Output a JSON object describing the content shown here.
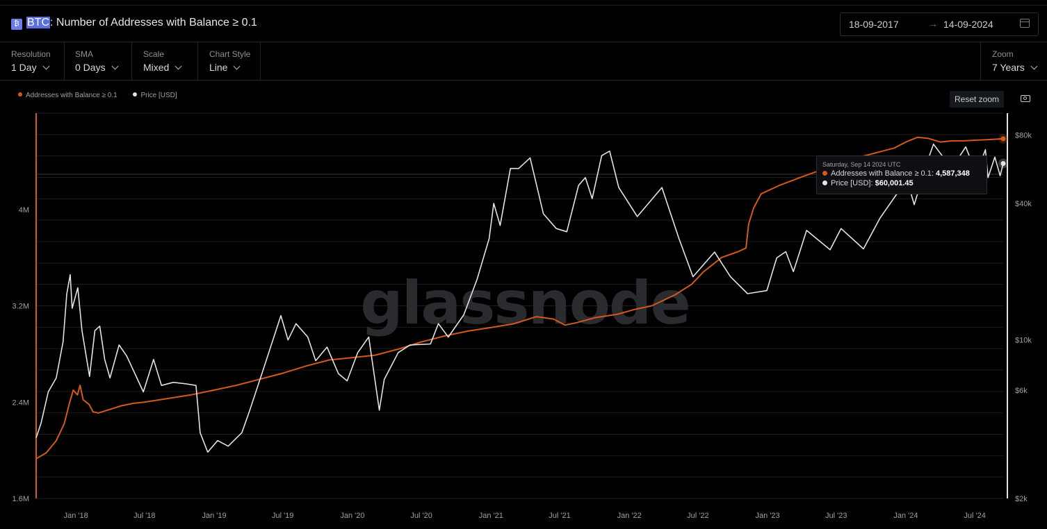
{
  "header": {
    "asset": "BTC",
    "title": ": Number of Addresses with Balance ≥ 0.1",
    "icon": "bitcoin-icon",
    "date_from": "18-09-2017",
    "date_arrow": "→",
    "date_to": "14-09-2024"
  },
  "controls": {
    "resolution": {
      "label": "Resolution",
      "value": "1 Day"
    },
    "sma": {
      "label": "SMA",
      "value": "0 Days"
    },
    "scale": {
      "label": "Scale",
      "value": "Mixed"
    },
    "chart_style": {
      "label": "Chart Style",
      "value": "Line"
    },
    "zoom": {
      "label": "Zoom",
      "value": "7 Years"
    }
  },
  "toolbar": {
    "reset_zoom": "Reset zoom",
    "screenshot_icon": "camera-icon"
  },
  "watermark": "glassnode",
  "tooltip": {
    "date": "Saturday, Sep 14 2024 UTC",
    "row1_label": "Addresses with Balance ≥ 0.1: ",
    "row1_value": "4,587,348",
    "row2_label": "Price [USD]: ",
    "row2_value": "$60,001.45"
  },
  "colors": {
    "addresses": "#d35a1b",
    "price": "#e4e4e4",
    "background": "#000000",
    "grid": "#1b1d21"
  },
  "chart_data": {
    "type": "line",
    "title": "BTC: Number of Addresses with Balance ≥ 0.1",
    "legend": [
      "Addresses with Balance ≥ 0.1",
      "Price [USD]"
    ],
    "legend_position": "top-left",
    "x_range": [
      "2017-09-18",
      "2024-09-14"
    ],
    "x_ticks": [
      "Jan '18",
      "Jul '18",
      "Jan '19",
      "Jul '19",
      "Jan '20",
      "Jul '20",
      "Jan '21",
      "Jul '21",
      "Jan '22",
      "Jul '22",
      "Jan '23",
      "Jul '23",
      "Jan '24",
      "Jul '24"
    ],
    "y_left": {
      "label": "",
      "scale": "linear",
      "range": [
        1600000,
        4800000
      ],
      "ticks": [
        1600000,
        2400000,
        3200000,
        4000000
      ],
      "tick_labels": [
        "1.6M",
        "2.4M",
        "3.2M",
        "4M"
      ]
    },
    "y_right": {
      "label": "",
      "scale": "log",
      "range": [
        2000,
        100000
      ],
      "ticks": [
        2000,
        6000,
        10000,
        40000,
        80000
      ],
      "tick_labels": [
        "$2k",
        "$6k",
        "$10k",
        "$40k",
        "$80k"
      ]
    },
    "grid": true,
    "series": [
      {
        "name": "Addresses with Balance ≥ 0.1",
        "axis": "left",
        "color": "#d35a1b",
        "points": [
          [
            "2017-09-18",
            1930000
          ],
          [
            "2017-10-15",
            1980000
          ],
          [
            "2017-11-10",
            2080000
          ],
          [
            "2017-12-01",
            2220000
          ],
          [
            "2017-12-15",
            2390000
          ],
          [
            "2017-12-25",
            2500000
          ],
          [
            "2018-01-05",
            2460000
          ],
          [
            "2018-01-12",
            2540000
          ],
          [
            "2018-01-20",
            2420000
          ],
          [
            "2018-02-05",
            2380000
          ],
          [
            "2018-02-15",
            2320000
          ],
          [
            "2018-03-01",
            2310000
          ],
          [
            "2018-04-01",
            2340000
          ],
          [
            "2018-05-01",
            2370000
          ],
          [
            "2018-06-01",
            2390000
          ],
          [
            "2018-07-01",
            2400000
          ],
          [
            "2018-09-01",
            2430000
          ],
          [
            "2018-11-01",
            2460000
          ],
          [
            "2018-12-01",
            2480000
          ],
          [
            "2019-01-01",
            2500000
          ],
          [
            "2019-03-01",
            2540000
          ],
          [
            "2019-05-01",
            2590000
          ],
          [
            "2019-07-01",
            2640000
          ],
          [
            "2019-09-01",
            2700000
          ],
          [
            "2019-11-01",
            2750000
          ],
          [
            "2020-01-01",
            2770000
          ],
          [
            "2020-03-01",
            2790000
          ],
          [
            "2020-05-01",
            2840000
          ],
          [
            "2020-07-01",
            2900000
          ],
          [
            "2020-09-01",
            2950000
          ],
          [
            "2020-11-01",
            2990000
          ],
          [
            "2021-01-01",
            3020000
          ],
          [
            "2021-03-01",
            3050000
          ],
          [
            "2021-05-01",
            3110000
          ],
          [
            "2021-06-15",
            3090000
          ],
          [
            "2021-07-15",
            3040000
          ],
          [
            "2021-08-15",
            3060000
          ],
          [
            "2021-10-01",
            3100000
          ],
          [
            "2021-12-01",
            3130000
          ],
          [
            "2022-01-15",
            3170000
          ],
          [
            "2022-03-01",
            3200000
          ],
          [
            "2022-05-01",
            3290000
          ],
          [
            "2022-06-15",
            3380000
          ],
          [
            "2022-07-15",
            3480000
          ],
          [
            "2022-09-01",
            3600000
          ],
          [
            "2022-10-15",
            3650000
          ],
          [
            "2022-11-05",
            3680000
          ],
          [
            "2022-11-12",
            3880000
          ],
          [
            "2022-11-25",
            4010000
          ],
          [
            "2022-12-15",
            4130000
          ],
          [
            "2023-02-01",
            4200000
          ],
          [
            "2023-04-01",
            4270000
          ],
          [
            "2023-06-01",
            4340000
          ],
          [
            "2023-08-01",
            4410000
          ],
          [
            "2023-10-01",
            4460000
          ],
          [
            "2023-12-01",
            4510000
          ],
          [
            "2024-01-01",
            4560000
          ],
          [
            "2024-02-01",
            4600000
          ],
          [
            "2024-03-01",
            4590000
          ],
          [
            "2024-04-01",
            4560000
          ],
          [
            "2024-05-01",
            4570000
          ],
          [
            "2024-06-01",
            4570000
          ],
          [
            "2024-07-01",
            4575000
          ],
          [
            "2024-08-01",
            4580000
          ],
          [
            "2024-09-14",
            4587348
          ]
        ]
      },
      {
        "name": "Price [USD]",
        "axis": "right",
        "color": "#e4e4e4",
        "points": [
          [
            "2017-09-18",
            3700
          ],
          [
            "2017-10-01",
            4300
          ],
          [
            "2017-10-20",
            5900
          ],
          [
            "2017-11-10",
            6800
          ],
          [
            "2017-11-28",
            9800
          ],
          [
            "2017-12-08",
            16000
          ],
          [
            "2017-12-17",
            19400
          ],
          [
            "2017-12-22",
            13800
          ],
          [
            "2018-01-06",
            17000
          ],
          [
            "2018-01-17",
            11000
          ],
          [
            "2018-02-06",
            6900
          ],
          [
            "2018-02-20",
            11000
          ],
          [
            "2018-03-05",
            11500
          ],
          [
            "2018-03-18",
            8200
          ],
          [
            "2018-04-01",
            6800
          ],
          [
            "2018-04-25",
            9500
          ],
          [
            "2018-05-15",
            8500
          ],
          [
            "2018-06-28",
            5900
          ],
          [
            "2018-07-25",
            8200
          ],
          [
            "2018-08-15",
            6300
          ],
          [
            "2018-09-15",
            6500
          ],
          [
            "2018-10-20",
            6400
          ],
          [
            "2018-11-14",
            6300
          ],
          [
            "2018-11-25",
            3900
          ],
          [
            "2018-12-15",
            3200
          ],
          [
            "2019-01-10",
            3600
          ],
          [
            "2019-02-07",
            3400
          ],
          [
            "2019-03-15",
            3900
          ],
          [
            "2019-04-05",
            4900
          ],
          [
            "2019-05-15",
            7800
          ],
          [
            "2019-06-26",
            12800
          ],
          [
            "2019-07-15",
            10000
          ],
          [
            "2019-08-05",
            11800
          ],
          [
            "2019-09-05",
            10300
          ],
          [
            "2019-09-26",
            8100
          ],
          [
            "2019-10-26",
            9300
          ],
          [
            "2019-11-25",
            7100
          ],
          [
            "2019-12-18",
            6600
          ],
          [
            "2020-01-15",
            8800
          ],
          [
            "2020-02-13",
            10300
          ],
          [
            "2020-03-12",
            4900
          ],
          [
            "2020-03-25",
            6700
          ],
          [
            "2020-05-01",
            8800
          ],
          [
            "2020-06-01",
            9500
          ],
          [
            "2020-07-25",
            9600
          ],
          [
            "2020-08-15",
            11800
          ],
          [
            "2020-09-10",
            10300
          ],
          [
            "2020-10-21",
            12900
          ],
          [
            "2020-11-25",
            18500
          ],
          [
            "2020-12-27",
            28000
          ],
          [
            "2021-01-08",
            40000
          ],
          [
            "2021-01-25",
            32000
          ],
          [
            "2021-02-21",
            57000
          ],
          [
            "2021-03-15",
            57000
          ],
          [
            "2021-04-14",
            63500
          ],
          [
            "2021-05-19",
            36000
          ],
          [
            "2021-06-22",
            31000
          ],
          [
            "2021-07-20",
            30000
          ],
          [
            "2021-08-20",
            48000
          ],
          [
            "2021-09-07",
            52000
          ],
          [
            "2021-09-25",
            42000
          ],
          [
            "2021-10-20",
            65000
          ],
          [
            "2021-11-10",
            68000
          ],
          [
            "2021-12-04",
            47000
          ],
          [
            "2022-01-22",
            35000
          ],
          [
            "2022-03-28",
            47000
          ],
          [
            "2022-05-12",
            28000
          ],
          [
            "2022-06-18",
            19000
          ],
          [
            "2022-08-14",
            24400
          ],
          [
            "2022-09-25",
            19000
          ],
          [
            "2022-11-09",
            16000
          ],
          [
            "2022-12-30",
            16500
          ],
          [
            "2023-01-25",
            23000
          ],
          [
            "2023-02-18",
            24500
          ],
          [
            "2023-03-10",
            20000
          ],
          [
            "2023-04-14",
            30400
          ],
          [
            "2023-06-15",
            25000
          ],
          [
            "2023-07-14",
            31000
          ],
          [
            "2023-09-11",
            25200
          ],
          [
            "2023-10-25",
            34500
          ],
          [
            "2023-12-08",
            44000
          ],
          [
            "2024-01-11",
            46500
          ],
          [
            "2024-01-23",
            39500
          ],
          [
            "2024-02-28",
            62000
          ],
          [
            "2024-03-14",
            73000
          ],
          [
            "2024-05-01",
            57000
          ],
          [
            "2024-06-07",
            71000
          ],
          [
            "2024-07-05",
            54000
          ],
          [
            "2024-07-29",
            69000
          ],
          [
            "2024-08-05",
            52000
          ],
          [
            "2024-08-23",
            64000
          ],
          [
            "2024-09-06",
            53000
          ],
          [
            "2024-09-14",
            60001.45
          ]
        ]
      }
    ]
  }
}
